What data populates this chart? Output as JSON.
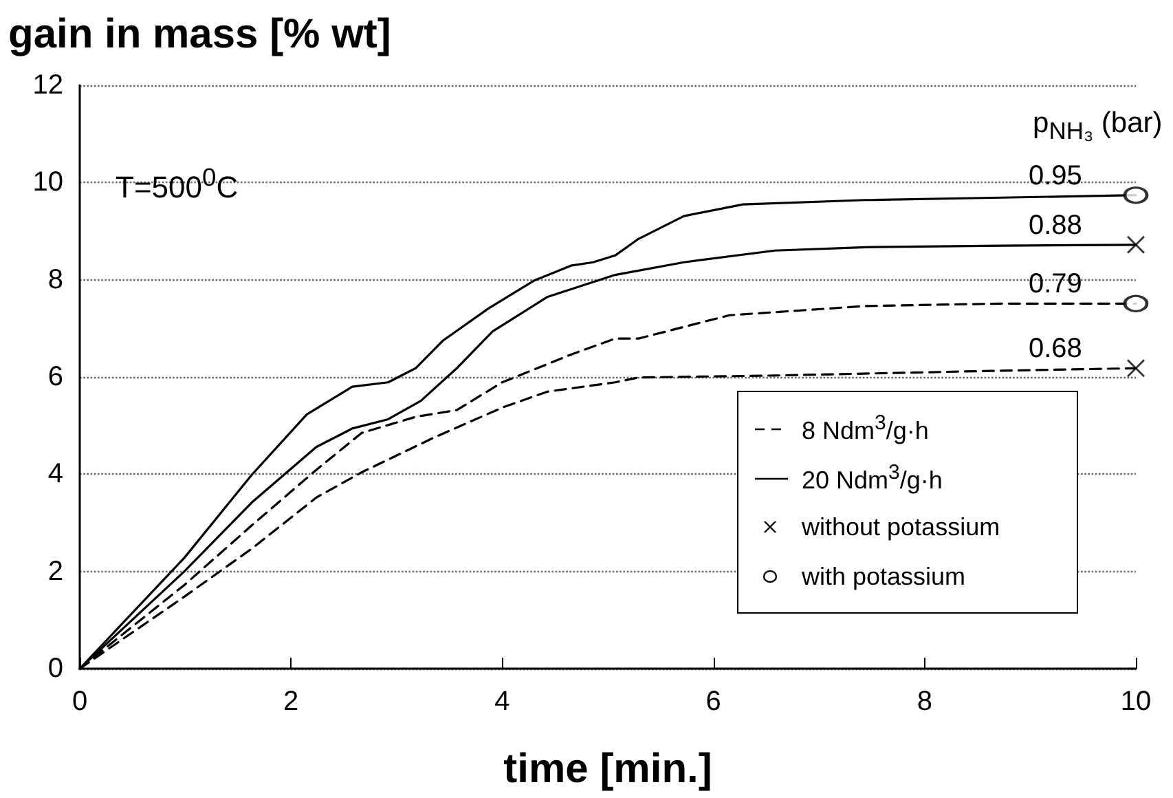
{
  "chart_data": {
    "type": "line",
    "ylabel": "gain in mass [% wt]",
    "xlabel": "time [min.]",
    "legend_title": "p$_{NH₃}$ (bar)",
    "annotations": [
      "T=500$^{0}$C",
      "8 Ndm$^{3}$/g·h",
      "20 Ndm$^{3}$/g·h",
      "without potassium",
      "with potassium"
    ],
    "xlim": [
      0,
      10
    ],
    "xticks": [
      0,
      2,
      4,
      6,
      8,
      10
    ],
    "ylim": [
      0,
      12
    ],
    "yticks": [
      0,
      2,
      4,
      6,
      8,
      10,
      12
    ],
    "grid": "y",
    "series": [
      {
        "name": "0.95",
        "color": "#000000",
        "line_style": "solid",
        "x": [
          0,
          0.99,
          1.63,
          2.15,
          2.58,
          2.92,
          3.18,
          3.44,
          3.87,
          4.3,
          4.65,
          4.86,
          5.07,
          5.29,
          5.72,
          6.28,
          7.44,
          8.73,
          10
        ],
        "values": [
          0,
          2.28,
          3.99,
          5.23,
          5.8,
          5.89,
          6.18,
          6.75,
          7.41,
          7.98,
          8.29,
          8.36,
          8.5,
          8.84,
          9.31,
          9.55,
          9.64,
          9.69,
          9.74
        ]
      },
      {
        "name": "0.88",
        "color": "#000000",
        "line_style": "solid",
        "x": [
          0,
          0.99,
          1.63,
          2.24,
          2.58,
          2.92,
          3.23,
          3.57,
          3.91,
          4.43,
          5.07,
          5.72,
          6.58,
          7.44,
          8.73,
          10
        ],
        "values": [
          0,
          2.0,
          3.42,
          4.56,
          4.94,
          5.13,
          5.51,
          6.18,
          6.94,
          7.65,
          8.1,
          8.36,
          8.6,
          8.67,
          8.7,
          8.72
        ]
      },
      {
        "name": "0.79",
        "color": "#000000",
        "line_style": "dashed",
        "x": [
          0,
          0.99,
          1.63,
          2.24,
          2.67,
          3.18,
          3.57,
          4.0,
          4.65,
          5.07,
          5.29,
          6.15,
          7.44,
          8.73,
          10
        ],
        "values": [
          0,
          1.72,
          2.95,
          4.09,
          4.85,
          5.18,
          5.32,
          5.89,
          6.46,
          6.79,
          6.79,
          7.27,
          7.46,
          7.51,
          7.51
        ]
      },
      {
        "name": "0.68",
        "color": "#000000",
        "line_style": "dashed",
        "x": [
          0,
          0.99,
          1.63,
          2.24,
          2.67,
          3.35,
          4.0,
          4.43,
          5.07,
          5.29,
          6.58,
          8.73,
          10
        ],
        "values": [
          0,
          1.48,
          2.47,
          3.52,
          4.04,
          4.75,
          5.37,
          5.7,
          5.89,
          5.99,
          6.03,
          6.13,
          6.18
        ]
      },
      {
        "type": "scatter",
        "color": "#000000",
        "marker": "circle",
        "x": [
          10,
          10
        ],
        "values": [
          9.74,
          7.51
        ]
      },
      {
        "type": "scatter",
        "color": "#000000",
        "marker": "cross",
        "x": [
          10,
          10
        ],
        "values": [
          8.72,
          6.18
        ]
      }
    ]
  }
}
